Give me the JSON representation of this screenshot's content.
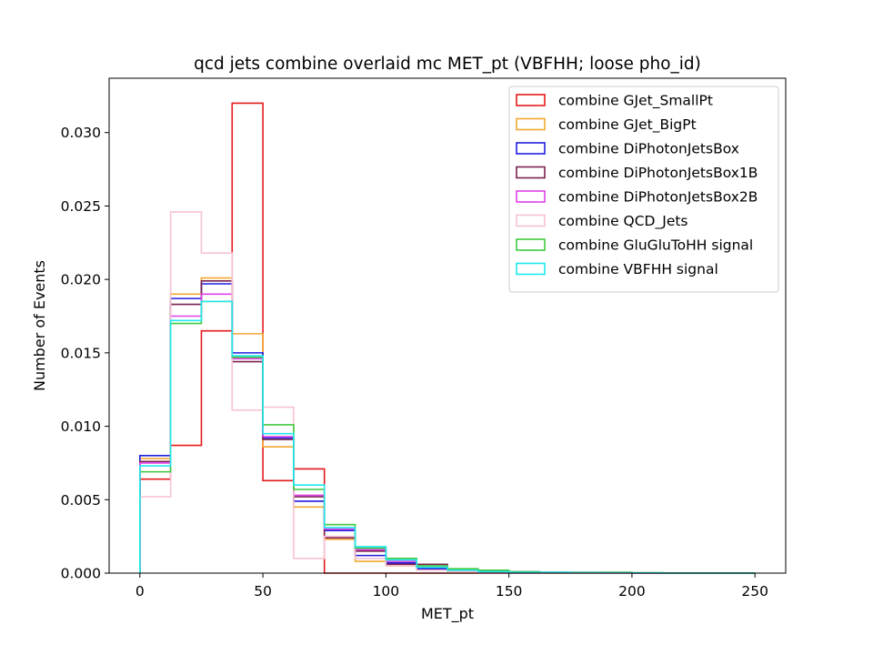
{
  "chart_data": {
    "type": "step-histogram",
    "title": "qcd jets combine overlaid mc MET_pt (VBFHH; loose pho_id)",
    "xlabel": "MET_pt",
    "ylabel": "Number of Events",
    "xlim": [
      -12.5,
      262.5
    ],
    "ylim": [
      0,
      0.0337
    ],
    "xticks": [
      0,
      50,
      100,
      150,
      200,
      250
    ],
    "yticks": [
      0.0,
      0.005,
      0.01,
      0.015,
      0.02,
      0.025,
      0.03
    ],
    "ytick_labels": [
      "0.000",
      "0.005",
      "0.010",
      "0.015",
      "0.020",
      "0.025",
      "0.030"
    ],
    "legend_position": "top-right",
    "bin_edges": [
      0,
      12.5,
      25,
      37.5,
      50,
      62.5,
      75,
      87.5,
      100,
      112.5,
      125,
      137.5,
      150,
      162.5,
      175,
      187.5,
      200,
      212.5,
      225,
      237.5,
      250
    ],
    "series": [
      {
        "name": "combine GJet_SmallPt",
        "color": "#e41a1c",
        "values": [
          0.0064,
          0.0087,
          0.0165,
          0.032,
          0.0063,
          0.0071,
          0.0,
          0.0,
          0.0,
          0.0,
          0.0,
          0.0,
          0.0,
          0.0,
          0.0,
          0.0,
          0.0,
          0.0,
          0.0,
          0.0
        ]
      },
      {
        "name": "combine GJet_BigPt",
        "color": "#f0a830",
        "values": [
          0.0078,
          0.019,
          0.0201,
          0.0163,
          0.0086,
          0.0045,
          0.0023,
          0.0008,
          0.0005,
          0.0003,
          0.0001,
          0.0001,
          5e-05,
          3e-05,
          2e-05,
          1e-05,
          0.0,
          0.0,
          0.0,
          0.0
        ]
      },
      {
        "name": "combine DiPhotonJetsBox",
        "color": "#1f1fdf",
        "values": [
          0.008,
          0.0187,
          0.0197,
          0.015,
          0.0092,
          0.0049,
          0.0029,
          0.0012,
          0.0007,
          0.0003,
          0.0002,
          0.0001,
          5e-05,
          3e-05,
          2e-05,
          1e-05,
          0.0,
          0.0,
          0.0,
          0.0
        ]
      },
      {
        "name": "combine DiPhotonJetsBox1B",
        "color": "#7b2150",
        "values": [
          0.0076,
          0.0183,
          0.0199,
          0.0144,
          0.0091,
          0.0052,
          0.0024,
          0.0015,
          0.0006,
          0.0006,
          0.0002,
          0.0001,
          5e-05,
          5e-05,
          3e-05,
          2e-05,
          0.0,
          0.0,
          0.0,
          0.0
        ]
      },
      {
        "name": "combine DiPhotonJetsBox2B",
        "color": "#e040e8",
        "values": [
          0.0075,
          0.0175,
          0.019,
          0.0146,
          0.0093,
          0.0053,
          0.003,
          0.0016,
          0.0008,
          0.0004,
          0.0002,
          0.0001,
          0.0001,
          5e-05,
          5e-05,
          5e-05,
          0.0,
          0.0,
          0.0,
          0.0
        ]
      },
      {
        "name": "combine QCD_Jets",
        "color": "#f7c2d1",
        "values": [
          0.0052,
          0.0246,
          0.0218,
          0.0111,
          0.0113,
          0.001,
          0.0025,
          0.001,
          0.0005,
          0.0002,
          0.0001,
          0.0,
          0.0,
          0.0,
          0.0,
          0.0,
          0.0,
          0.0,
          0.0,
          0.0
        ]
      },
      {
        "name": "combine GluGluToHH signal",
        "color": "#3ec93e",
        "values": [
          0.0069,
          0.017,
          0.0185,
          0.0147,
          0.0101,
          0.0057,
          0.0033,
          0.0017,
          0.001,
          0.0005,
          0.0003,
          0.0002,
          0.0001,
          5e-05,
          5e-05,
          5e-05,
          3e-05,
          0.0,
          0.0,
          0.0
        ]
      },
      {
        "name": "combine VBFHH signal",
        "color": "#1fe8ee",
        "values": [
          0.0073,
          0.0172,
          0.0185,
          0.0148,
          0.0095,
          0.006,
          0.0031,
          0.0018,
          0.0009,
          0.0004,
          0.0002,
          0.0001,
          5e-05,
          5e-05,
          3e-05,
          2e-05,
          1e-05,
          0.0,
          0.0,
          0.0
        ]
      }
    ]
  }
}
